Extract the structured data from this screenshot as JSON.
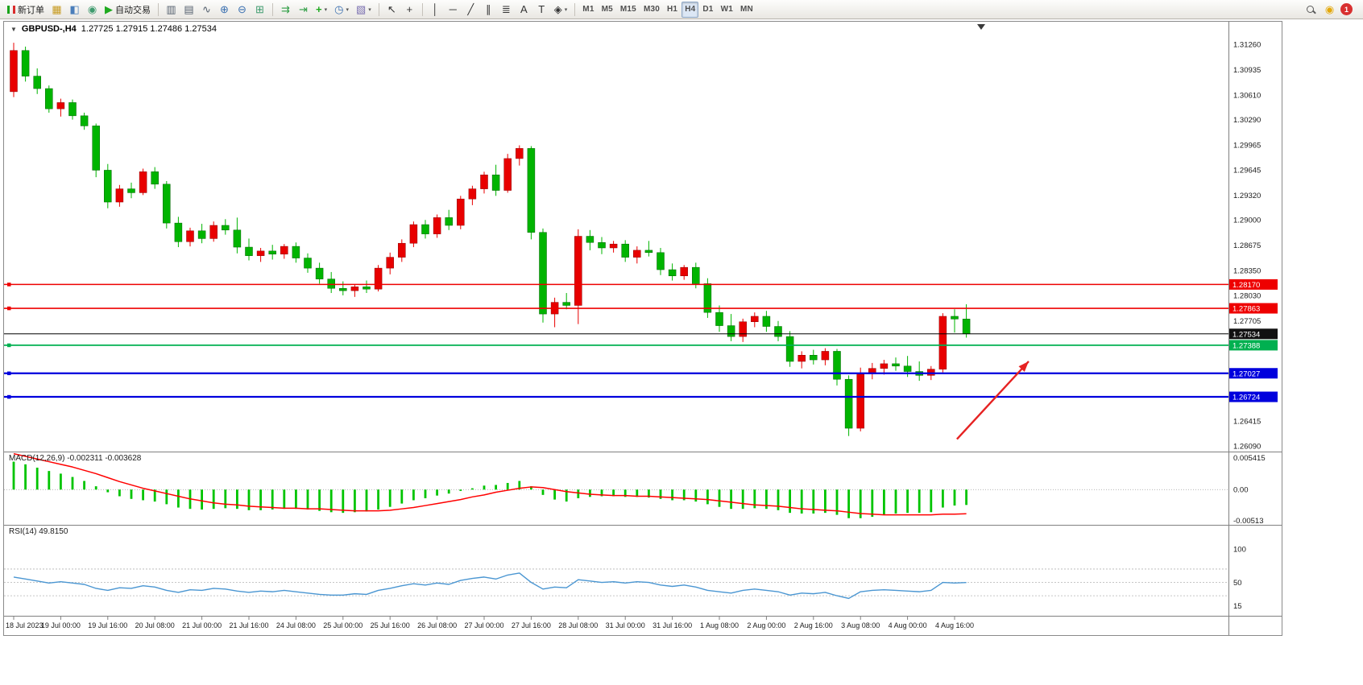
{
  "toolbar": {
    "caret_glyph": "▾",
    "groups": [
      {
        "items": [
          {
            "name": "new-order-button",
            "icon": "candles",
            "label": "新订单"
          },
          {
            "name": "market-watch-button",
            "glyph": "▦",
            "color": "#c79a1f"
          },
          {
            "name": "data-window-button",
            "glyph": "◧",
            "color": "#4a7ebb"
          },
          {
            "name": "navigator-button",
            "glyph": "◉",
            "color": "#3f9b6e"
          },
          {
            "name": "auto-trading-button",
            "glyph": "▶",
            "color": "#1faa1f",
            "label": "自动交易"
          }
        ]
      },
      {
        "items": [
          {
            "name": "bar-chart-button",
            "glyph": "▥",
            "color": "#55606e"
          },
          {
            "name": "candlestick-chart-button",
            "glyph": "▤",
            "color": "#55606e"
          },
          {
            "name": "line-chart-button",
            "glyph": "∿",
            "color": "#55606e"
          },
          {
            "name": "zoom-in-button",
            "glyph": "⊕",
            "color": "#3a6fb0"
          },
          {
            "name": "zoom-out-button",
            "glyph": "⊖",
            "color": "#3a6fb0"
          },
          {
            "name": "tile-windows-button",
            "glyph": "⊞",
            "color": "#3f9b6e"
          }
        ]
      },
      {
        "items": [
          {
            "name": "auto-scroll-button",
            "glyph": "⇉",
            "color": "#2f9e44"
          },
          {
            "name": "chart-shift-button",
            "glyph": "⇥",
            "color": "#2f9e44"
          },
          {
            "name": "indicators-button",
            "glyph": "+",
            "color": "#1faa1f",
            "bold": true,
            "dropdown": true
          },
          {
            "name": "periods-button",
            "glyph": "◷",
            "color": "#3a6fb0",
            "dropdown": true
          },
          {
            "name": "templates-button",
            "glyph": "▧",
            "color": "#7a6fb0",
            "dropdown": true
          }
        ]
      },
      {
        "items": [
          {
            "name": "cursor-button",
            "glyph": "↖",
            "color": "#333333"
          },
          {
            "name": "crosshair-button",
            "glyph": "+",
            "color": "#333333"
          }
        ]
      },
      {
        "items": [
          {
            "name": "vertical-line-button",
            "glyph": "│",
            "color": "#333333"
          },
          {
            "name": "horizontal-line-button",
            "glyph": "─",
            "color": "#333333"
          },
          {
            "name": "trendline-button",
            "glyph": "╱",
            "color": "#333333"
          },
          {
            "name": "equidistant-channel-button",
            "glyph": "∥",
            "color": "#333333"
          },
          {
            "name": "fibonacci-button",
            "glyph": "≣",
            "color": "#333333"
          },
          {
            "name": "text-button",
            "glyph": "A",
            "color": "#333333"
          },
          {
            "name": "text-label-button",
            "glyph": "T",
            "color": "#333333"
          },
          {
            "name": "objects-button",
            "glyph": "◈",
            "color": "#333333",
            "dropdown": true
          }
        ]
      }
    ],
    "timeframes": [
      "M1",
      "M5",
      "M15",
      "M30",
      "H1",
      "H4",
      "D1",
      "W1",
      "MN"
    ],
    "active_timeframe": "H4",
    "right_icons": [
      {
        "name": "search-button",
        "icon": "magnifier"
      },
      {
        "name": "notifications-button",
        "glyph": "◉",
        "color": "#e3a80b"
      },
      {
        "name": "alert-badge-button",
        "badge": "1",
        "color": "#d82f2f"
      }
    ]
  },
  "chart": {
    "expander_glyph": "▼",
    "symbol_period": "GBPUSD-,H4",
    "ohlc_text": "1.27725  1.27915  1.27486  1.27534"
  },
  "chart_data": [
    {
      "type": "candlestick",
      "title": "GBPUSD-,H4",
      "ohlc_display": {
        "open": "1.27725",
        "high": "1.27915",
        "low": "1.27486",
        "close": "1.27534"
      },
      "ylim": [
        1.2602,
        1.3155
      ],
      "up_color": "#e80000",
      "up_border": "#8f0000",
      "down_color": "#00b400",
      "down_border": "#006400",
      "y_axis_labels": [
        "1.31260",
        "1.30935",
        "1.30610",
        "1.30290",
        "1.29965",
        "1.29645",
        "1.29320",
        "1.29000",
        "1.28675",
        "1.28350",
        "1.28030",
        "1.27705",
        "1.26415",
        "1.26090"
      ],
      "x_label_step": 4,
      "x_labels": [
        "18 Jul 2023",
        "19 Jul 00:00",
        "19 Jul 16:00",
        "20 Jul 08:00",
        "21 Jul 00:00",
        "21 Jul 16:00",
        "24 Jul 08:00",
        "25 Jul 00:00",
        "25 Jul 16:00",
        "26 Jul 08:00",
        "27 Jul 00:00",
        "27 Jul 16:00",
        "28 Jul 08:00",
        "31 Jul 00:00",
        "31 Jul 16:00",
        "1 Aug 08:00",
        "2 Aug 00:00",
        "2 Aug 16:00",
        "3 Aug 08:00",
        "4 Aug 00:00",
        "4 Aug 16:00"
      ],
      "hlines": [
        {
          "name": "resistance-line-1",
          "price": 1.2817,
          "color": "#ee0000",
          "width": 1.6,
          "label": "1.28170"
        },
        {
          "name": "resistance-line-2",
          "price": 1.27863,
          "color": "#ee0000",
          "width": 1.6,
          "label": "1.27863"
        },
        {
          "name": "current-price-line",
          "price": 1.27534,
          "color": "#000000",
          "width": 1,
          "label": "1.27534",
          "box": "#111111"
        },
        {
          "name": "support-line-green",
          "price": 1.27388,
          "color": "#00b050",
          "width": 1.8,
          "label": "1.27388"
        },
        {
          "name": "support-line-blue-1",
          "price": 1.27027,
          "color": "#0000dd",
          "width": 2.2,
          "label": "1.27027"
        },
        {
          "name": "support-line-blue-2",
          "price": 1.26724,
          "color": "#0000dd",
          "width": 2.2,
          "label": "1.26724"
        }
      ],
      "arrow": {
        "x1_index": 80.2,
        "price1": 1.2618,
        "x2_index": 86.3,
        "price2": 1.2718,
        "color": "#e62222"
      },
      "candles": [
        [
          1.3065,
          1.3128,
          1.3058,
          1.3118
        ],
        [
          1.3118,
          1.3123,
          1.3078,
          1.3085
        ],
        [
          1.3085,
          1.3095,
          1.3062,
          1.3069
        ],
        [
          1.3069,
          1.3073,
          1.3038,
          1.3043
        ],
        [
          1.3043,
          1.3056,
          1.3033,
          1.3051
        ],
        [
          1.3051,
          1.3055,
          1.3029,
          1.3034
        ],
        [
          1.3034,
          1.3038,
          1.3016,
          1.3021
        ],
        [
          1.3021,
          1.3024,
          1.2955,
          1.2964
        ],
        [
          1.2964,
          1.2972,
          1.2915,
          1.2923
        ],
        [
          1.2923,
          1.2945,
          1.2917,
          1.294
        ],
        [
          1.294,
          1.2948,
          1.2928,
          1.2935
        ],
        [
          1.2935,
          1.2966,
          1.2932,
          1.2962
        ],
        [
          1.2962,
          1.2968,
          1.294,
          1.2946
        ],
        [
          1.2946,
          1.295,
          1.2889,
          1.2896
        ],
        [
          1.2896,
          1.2904,
          1.2865,
          1.2872
        ],
        [
          1.2872,
          1.289,
          1.2866,
          1.2886
        ],
        [
          1.2886,
          1.2895,
          1.287,
          1.2876
        ],
        [
          1.2876,
          1.2898,
          1.2872,
          1.2893
        ],
        [
          1.2893,
          1.2901,
          1.2881,
          1.2887
        ],
        [
          1.2887,
          1.2903,
          1.2857,
          1.2865
        ],
        [
          1.2865,
          1.2876,
          1.2848,
          1.2854
        ],
        [
          1.2854,
          1.2864,
          1.2846,
          1.286
        ],
        [
          1.286,
          1.2868,
          1.2849,
          1.2856
        ],
        [
          1.2856,
          1.2869,
          1.285,
          1.2866
        ],
        [
          1.2866,
          1.2871,
          1.2845,
          1.2851
        ],
        [
          1.2851,
          1.2857,
          1.2832,
          1.2838
        ],
        [
          1.2838,
          1.2845,
          1.2818,
          1.2824
        ],
        [
          1.2824,
          1.2833,
          1.2806,
          1.2812
        ],
        [
          1.2812,
          1.2821,
          1.2803,
          1.2809
        ],
        [
          1.2809,
          1.2817,
          1.2801,
          1.2814
        ],
        [
          1.2814,
          1.2822,
          1.2806,
          1.2811
        ],
        [
          1.2811,
          1.2842,
          1.2808,
          1.2838
        ],
        [
          1.2838,
          1.2858,
          1.283,
          1.2852
        ],
        [
          1.2852,
          1.2875,
          1.2846,
          1.287
        ],
        [
          1.287,
          1.2898,
          1.2865,
          1.2894
        ],
        [
          1.2894,
          1.29,
          1.2876,
          1.2882
        ],
        [
          1.2882,
          1.2907,
          1.2877,
          1.2903
        ],
        [
          1.2903,
          1.2913,
          1.2887,
          1.2893
        ],
        [
          1.2893,
          1.2931,
          1.2888,
          1.2927
        ],
        [
          1.2927,
          1.2944,
          1.2919,
          1.294
        ],
        [
          1.294,
          1.2962,
          1.2934,
          1.2958
        ],
        [
          1.2958,
          1.2971,
          1.2931,
          1.2938
        ],
        [
          1.2938,
          1.2985,
          1.2935,
          1.2979
        ],
        [
          1.2979,
          1.2996,
          1.297,
          1.2992
        ],
        [
          1.2992,
          1.2995,
          1.2875,
          1.2884
        ],
        [
          1.2884,
          1.2889,
          1.2768,
          1.2779
        ],
        [
          1.2779,
          1.28,
          1.2762,
          1.2794
        ],
        [
          1.2794,
          1.2806,
          1.2785,
          1.279
        ],
        [
          1.279,
          1.2888,
          1.2766,
          1.2879
        ],
        [
          1.2879,
          1.2887,
          1.2861,
          1.2871
        ],
        [
          1.2871,
          1.2878,
          1.2856,
          1.2864
        ],
        [
          1.2864,
          1.2873,
          1.2858,
          1.2869
        ],
        [
          1.2869,
          1.2874,
          1.2846,
          1.2852
        ],
        [
          1.2852,
          1.2866,
          1.2844,
          1.2861
        ],
        [
          1.2861,
          1.2873,
          1.2853,
          1.2858
        ],
        [
          1.2858,
          1.2864,
          1.2829,
          1.2836
        ],
        [
          1.2836,
          1.2844,
          1.2822,
          1.2828
        ],
        [
          1.2828,
          1.2842,
          1.2823,
          1.2839
        ],
        [
          1.2839,
          1.2845,
          1.2812,
          1.2818
        ],
        [
          1.2818,
          1.2825,
          1.2774,
          1.2781
        ],
        [
          1.2781,
          1.279,
          1.2756,
          1.2764
        ],
        [
          1.2764,
          1.2779,
          1.2744,
          1.275
        ],
        [
          1.275,
          1.2773,
          1.2743,
          1.2769
        ],
        [
          1.2769,
          1.2781,
          1.2762,
          1.2776
        ],
        [
          1.2776,
          1.2783,
          1.2756,
          1.2763
        ],
        [
          1.2763,
          1.277,
          1.2744,
          1.275
        ],
        [
          1.275,
          1.2757,
          1.2711,
          1.2718
        ],
        [
          1.2718,
          1.2731,
          1.2709,
          1.2726
        ],
        [
          1.2726,
          1.2733,
          1.2714,
          1.272
        ],
        [
          1.272,
          1.2735,
          1.2713,
          1.2731
        ],
        [
          1.2731,
          1.2734,
          1.2687,
          1.2695
        ],
        [
          1.2695,
          1.27,
          1.2622,
          1.2632
        ],
        [
          1.2632,
          1.271,
          1.2628,
          1.2702
        ],
        [
          1.2702,
          1.2716,
          1.2695,
          1.2709
        ],
        [
          1.2709,
          1.272,
          1.2701,
          1.2715
        ],
        [
          1.2715,
          1.2723,
          1.2706,
          1.2712
        ],
        [
          1.2712,
          1.2725,
          1.2698,
          1.2705
        ],
        [
          1.2705,
          1.2718,
          1.2693,
          1.27
        ],
        [
          1.27,
          1.2712,
          1.2694,
          1.2708
        ],
        [
          1.2708,
          1.278,
          1.2704,
          1.2776
        ],
        [
          1.2776,
          1.2785,
          1.2755,
          1.27725
        ],
        [
          1.27725,
          1.27915,
          1.27486,
          1.27534
        ]
      ]
    },
    {
      "type": "bar",
      "name": "MACD",
      "label": "MACD(12,26,9) -0.002311 -0.003628",
      "ylim": [
        -0.0053,
        0.0056
      ],
      "y_axis_labels": [
        "0.005415",
        "0.00",
        "-0.00513"
      ],
      "hist_color": "#00c400",
      "signal_color": "#ff0000",
      "histogram": [
        0.0042,
        0.0038,
        0.0033,
        0.0028,
        0.0024,
        0.0019,
        0.0013,
        0.0005,
        -0.0004,
        -0.001,
        -0.0014,
        -0.0016,
        -0.0018,
        -0.0022,
        -0.0027,
        -0.0029,
        -0.003,
        -0.0029,
        -0.0028,
        -0.0029,
        -0.0031,
        -0.0031,
        -0.003,
        -0.0029,
        -0.0029,
        -0.003,
        -0.0032,
        -0.0034,
        -0.0035,
        -0.0034,
        -0.0033,
        -0.003,
        -0.0026,
        -0.0021,
        -0.0016,
        -0.0013,
        -0.0009,
        -0.0006,
        -0.0002,
        0.0002,
        0.0006,
        0.0007,
        0.001,
        0.0013,
        0.0005,
        -0.0008,
        -0.0015,
        -0.0018,
        -0.0013,
        -0.0011,
        -0.001,
        -0.001,
        -0.0011,
        -0.0011,
        -0.0012,
        -0.0014,
        -0.0016,
        -0.0016,
        -0.0018,
        -0.0022,
        -0.0026,
        -0.0029,
        -0.0029,
        -0.0028,
        -0.0029,
        -0.0031,
        -0.0035,
        -0.0036,
        -0.0036,
        -0.0035,
        -0.0038,
        -0.0043,
        -0.0043,
        -0.0041,
        -0.0038,
        -0.0036,
        -0.0035,
        -0.0035,
        -0.0034,
        -0.0027,
        -0.0024,
        -0.002311
      ],
      "signal": [
        0.0054,
        0.005,
        0.0046,
        0.0042,
        0.0038,
        0.0034,
        0.0029,
        0.0024,
        0.0018,
        0.0012,
        0.0007,
        0.0002,
        -0.0002,
        -0.0006,
        -0.001,
        -0.0014,
        -0.0017,
        -0.002,
        -0.0022,
        -0.0023,
        -0.0025,
        -0.0026,
        -0.0027,
        -0.0028,
        -0.0028,
        -0.0029,
        -0.0029,
        -0.003,
        -0.0031,
        -0.0032,
        -0.0032,
        -0.0032,
        -0.0031,
        -0.0029,
        -0.0027,
        -0.0024,
        -0.0021,
        -0.0018,
        -0.0015,
        -0.0011,
        -0.0008,
        -0.0004,
        -0.0001,
        0.0002,
        0.0004,
        0.0003,
        0.0,
        -0.0003,
        -0.0005,
        -0.0007,
        -0.0008,
        -0.0009,
        -0.0009,
        -0.001,
        -0.001,
        -0.0011,
        -0.0012,
        -0.0013,
        -0.0014,
        -0.0015,
        -0.0017,
        -0.0019,
        -0.0021,
        -0.0023,
        -0.0024,
        -0.0025,
        -0.0027,
        -0.0029,
        -0.003,
        -0.0031,
        -0.0032,
        -0.0034,
        -0.0036,
        -0.0037,
        -0.0038,
        -0.0038,
        -0.0038,
        -0.0038,
        -0.0038,
        -0.0037,
        -0.0037,
        -0.003628
      ]
    },
    {
      "type": "line",
      "name": "RSI",
      "label": "RSI(14) 49.8150",
      "ylim": [
        0,
        135
      ],
      "y_axis_labels": [
        "100",
        "50",
        "15"
      ],
      "levels": [
        70,
        50,
        30
      ],
      "line_color": "#4a96d2",
      "values": [
        58,
        55,
        52,
        49,
        51,
        49,
        47,
        41,
        38,
        42,
        41,
        45,
        43,
        38,
        35,
        39,
        38,
        41,
        40,
        37,
        35,
        37,
        36,
        38,
        36,
        34,
        32,
        31,
        31,
        33,
        32,
        38,
        41,
        45,
        48,
        46,
        49,
        47,
        53,
        56,
        58,
        55,
        61,
        64,
        50,
        40,
        43,
        42,
        54,
        52,
        50,
        51,
        49,
        51,
        50,
        46,
        44,
        46,
        43,
        38,
        36,
        34,
        38,
        40,
        38,
        36,
        31,
        34,
        33,
        35,
        30,
        26,
        36,
        38,
        39,
        38,
        37,
        36,
        38,
        50,
        49,
        49.815
      ]
    }
  ]
}
